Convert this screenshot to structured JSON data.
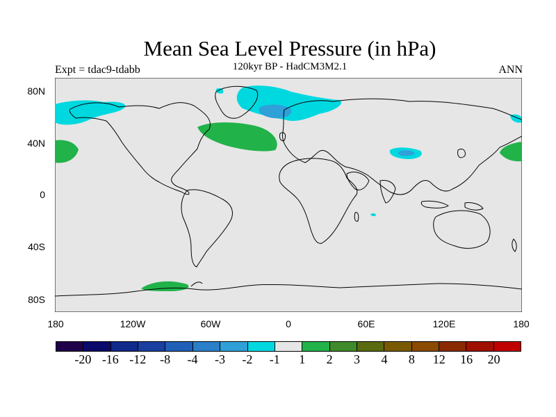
{
  "title": "Mean Sea Level Pressure (in hPa)",
  "subtitle": "120kyr BP - HadCM3M2.1",
  "left_label": "Expt = tdac9-tdabb",
  "right_label": "ANN",
  "axes": {
    "y_ticks": [
      "80N",
      "40N",
      "0",
      "40S",
      "80S"
    ],
    "x_ticks": [
      "180",
      "120W",
      "60W",
      "0",
      "60E",
      "120E",
      "180"
    ]
  },
  "colorbar": {
    "colors": [
      "#20004a",
      "#0a0a6a",
      "#102a8a",
      "#1a3fa0",
      "#1f5fb8",
      "#2a7fc8",
      "#2fa0d8",
      "#00d8e0",
      "#e6e6e6",
      "#21b24a",
      "#3f8a2a",
      "#5a6a10",
      "#7a5a00",
      "#8a4a00",
      "#8a2a00",
      "#a01000",
      "#c00000"
    ],
    "labels": [
      "-20",
      "-16",
      "-12",
      "-8",
      "-4",
      "-3",
      "-2",
      "-1",
      "1",
      "2",
      "3",
      "4",
      "8",
      "12",
      "16",
      "20"
    ]
  },
  "colors": {
    "background_field": "#e6e6e6",
    "coast": "#000000",
    "positive_anomaly": "#21b24a",
    "negative_light": "#00d8e0",
    "negative_medium": "#2fa0d8"
  }
}
